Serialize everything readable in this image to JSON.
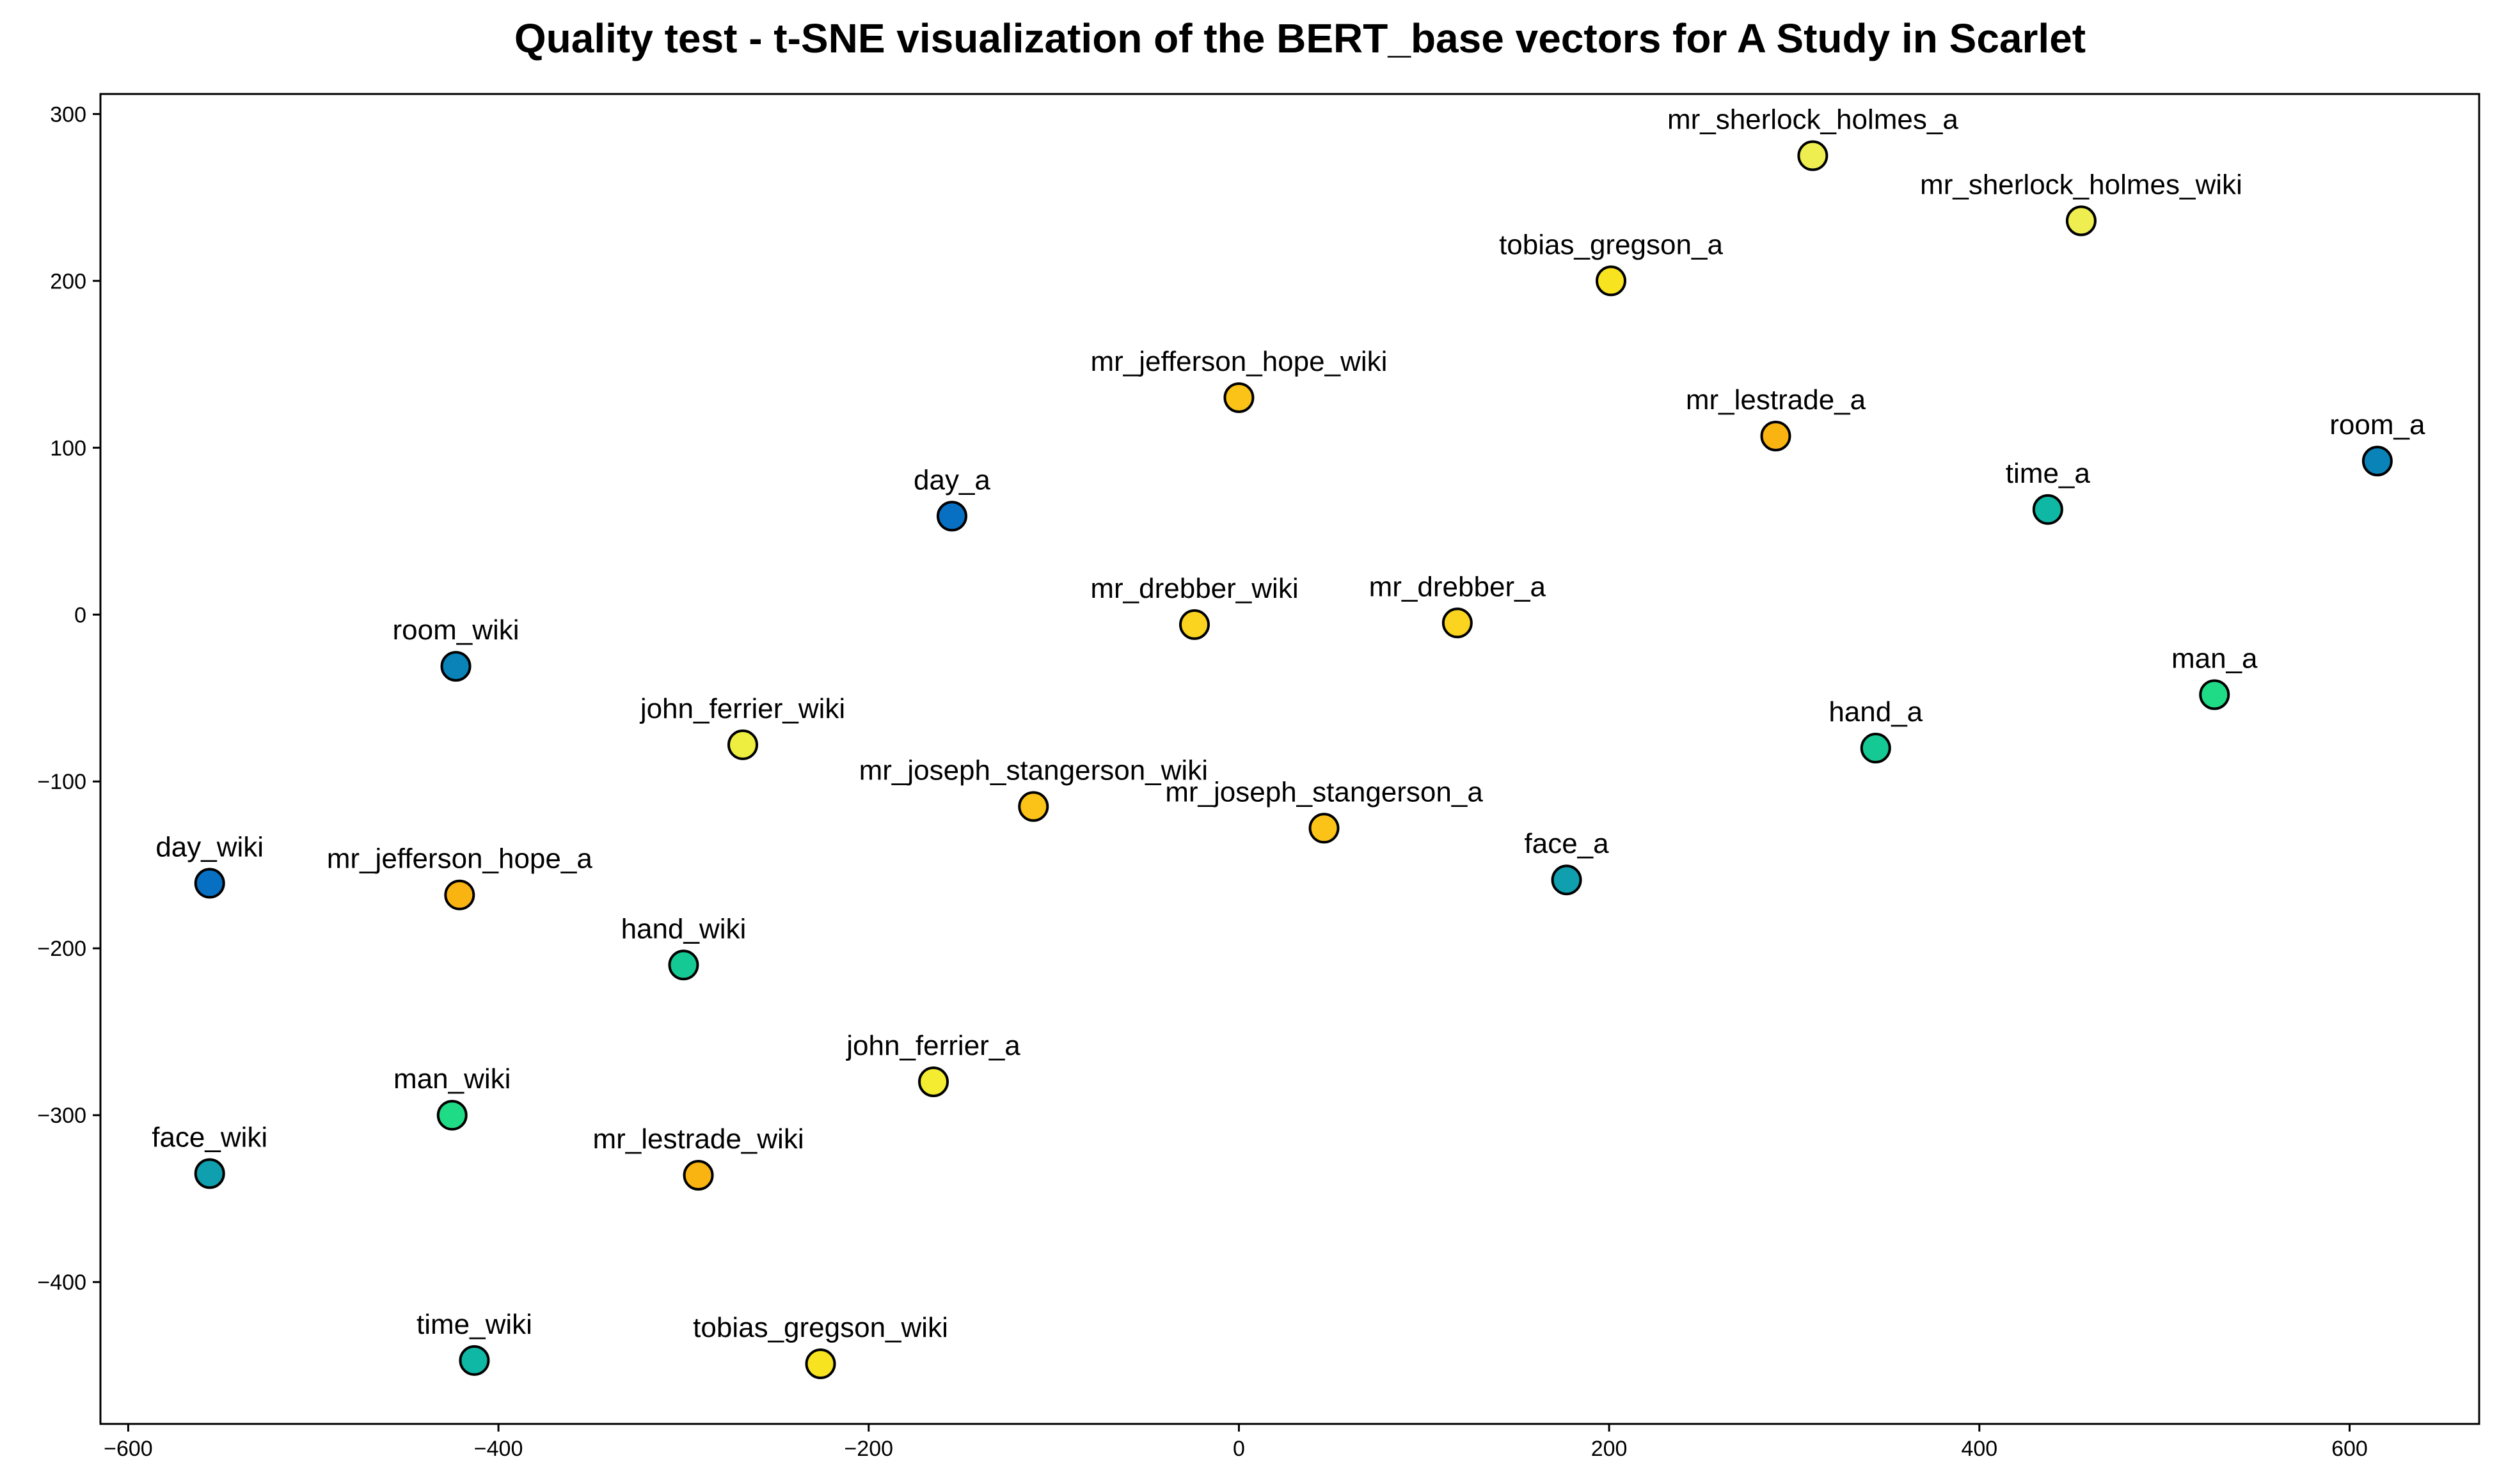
{
  "chart_data": {
    "type": "scatter",
    "title": "Quality test - t-SNE visualization of the BERT_base vectors for A Study in Scarlet",
    "xlabel": "",
    "ylabel": "",
    "xlim": [
      -615,
      670
    ],
    "ylim": [
      -485,
      312
    ],
    "x_ticks": [
      -600,
      -400,
      -200,
      0,
      200,
      400,
      600
    ],
    "y_ticks": [
      -400,
      -300,
      -200,
      -100,
      0,
      100,
      200,
      300
    ],
    "x_tick_labels": [
      "−600",
      "−400",
      "−200",
      "0",
      "200",
      "400",
      "600"
    ],
    "y_tick_labels": [
      "−400",
      "−300",
      "−200",
      "−100",
      "0",
      "100",
      "200",
      "300"
    ],
    "grid": false,
    "points": [
      {
        "label": "mr_sherlock_holmes_a",
        "x": 310,
        "y": 275,
        "color": "#eeee50"
      },
      {
        "label": "mr_sherlock_holmes_wiki",
        "x": 455,
        "y": 236,
        "color": "#eeee50"
      },
      {
        "label": "tobias_gregson_a",
        "x": 201,
        "y": 200,
        "color": "#f8e321"
      },
      {
        "label": "mr_jefferson_hope_wiki",
        "x": 0,
        "y": 130,
        "color": "#fbc318"
      },
      {
        "label": "mr_lestrade_a",
        "x": 290,
        "y": 107,
        "color": "#f9b412"
      },
      {
        "label": "room_a",
        "x": 615,
        "y": 92,
        "color": "#0a83b9"
      },
      {
        "label": "time_a",
        "x": 437,
        "y": 63,
        "color": "#0eb8a4"
      },
      {
        "label": "day_a",
        "x": -155,
        "y": 59,
        "color": "#0870c3"
      },
      {
        "label": "mr_drebber_wiki",
        "x": -24,
        "y": -6,
        "color": "#fbd41f"
      },
      {
        "label": "mr_drebber_a",
        "x": 118,
        "y": -5,
        "color": "#fbd41f"
      },
      {
        "label": "room_wiki",
        "x": -423,
        "y": -31,
        "color": "#0a83b9"
      },
      {
        "label": "man_a",
        "x": 527,
        "y": -48,
        "color": "#1fdb85"
      },
      {
        "label": "john_ferrier_wiki",
        "x": -268,
        "y": -78,
        "color": "#eeee40"
      },
      {
        "label": "hand_a",
        "x": 344,
        "y": -80,
        "color": "#15c994"
      },
      {
        "label": "mr_joseph_stangerson_wiki",
        "x": -111,
        "y": -115,
        "color": "#fbc318"
      },
      {
        "label": "mr_joseph_stangerson_a",
        "x": 46,
        "y": -128,
        "color": "#fbc318"
      },
      {
        "label": "face_a",
        "x": 177,
        "y": -159,
        "color": "#0f9fae"
      },
      {
        "label": "day_wiki",
        "x": -556,
        "y": -161,
        "color": "#0870c3"
      },
      {
        "label": "mr_jefferson_hope_a",
        "x": -421,
        "y": -168,
        "color": "#f9b412"
      },
      {
        "label": "hand_wiki",
        "x": -300,
        "y": -210,
        "color": "#15c994"
      },
      {
        "label": "john_ferrier_a",
        "x": -165,
        "y": -280,
        "color": "#f3ec30"
      },
      {
        "label": "man_wiki",
        "x": -425,
        "y": -300,
        "color": "#1fdb85"
      },
      {
        "label": "face_wiki",
        "x": -556,
        "y": -335,
        "color": "#0f9fae"
      },
      {
        "label": "mr_lestrade_wiki",
        "x": -292,
        "y": -336,
        "color": "#f9b412"
      },
      {
        "label": "time_wiki",
        "x": -413,
        "y": -447,
        "color": "#0eb8a4"
      },
      {
        "label": "tobias_gregson_wiki",
        "x": -226,
        "y": -449,
        "color": "#f8e321"
      }
    ]
  }
}
